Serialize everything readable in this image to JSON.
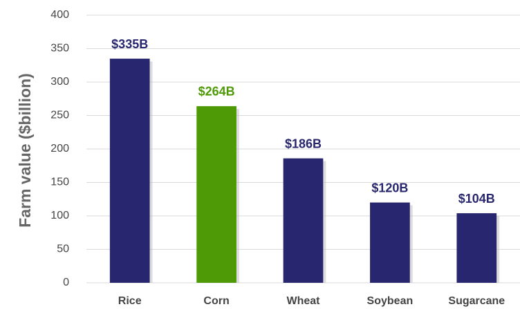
{
  "chart_data": {
    "type": "bar",
    "y_label": "Farm value ($billion)",
    "categories": [
      "Rice",
      "Corn",
      "Wheat",
      "Soybean",
      "Sugarcane"
    ],
    "values": [
      335,
      264,
      186,
      120,
      104
    ],
    "value_labels": [
      "$335B",
      "$264B",
      "$186B",
      "$120B",
      "$104B"
    ],
    "colors": [
      "#27266e",
      "#4e9a06",
      "#27266e",
      "#27266e",
      "#27266e"
    ],
    "ylim": [
      0,
      400
    ],
    "yticks": [
      0,
      50,
      100,
      150,
      200,
      250,
      300,
      350,
      400
    ],
    "grid": true
  }
}
